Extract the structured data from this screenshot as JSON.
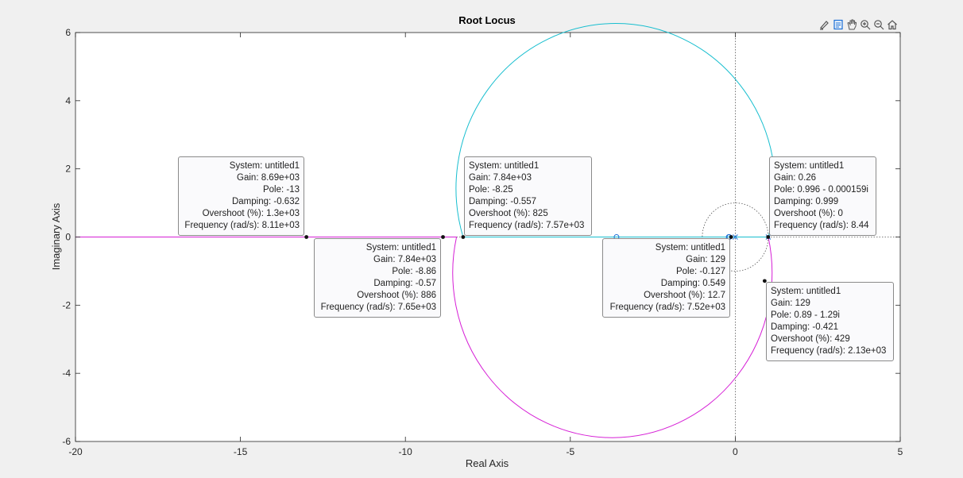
{
  "toolbar": {
    "icons": [
      "brush-icon",
      "datatip-icon",
      "pan-icon",
      "zoom-in-icon",
      "zoom-out-icon",
      "home-icon"
    ],
    "accent": "#1a6fd6"
  },
  "chart_data": {
    "type": "line",
    "title": "Root Locus",
    "xlabel": "Real Axis",
    "ylabel": "Imaginary Axis",
    "xlim": [
      -20,
      5
    ],
    "ylim": [
      -6,
      6
    ],
    "xticks": [
      -20,
      -15,
      -10,
      -5,
      0,
      5
    ],
    "yticks": [
      -6,
      -4,
      -2,
      0,
      2,
      4,
      6
    ],
    "grid": false,
    "colors": {
      "cyan_branch": "#17becf",
      "magenta_branch": "#d61fd6",
      "datatip_border": "#8a8a8a"
    },
    "circle_branch": {
      "center": [
        -3.6,
        0
      ],
      "radius": 4.84
    },
    "series": [
      {
        "color": "#17becf",
        "points": [
          [
            -8.25,
            0
          ],
          [
            1.0,
            0
          ]
        ],
        "upper_arc_from": [
          -8.25,
          0
        ],
        "upper_arc_to": [
          1.0,
          0
        ]
      },
      {
        "color": "#d61fd6",
        "points": [
          [
            -20,
            0
          ],
          [
            -8.45,
            0
          ]
        ],
        "lower_arc_from": [
          -8.45,
          0
        ],
        "lower_arc_to": [
          1.0,
          0
        ]
      }
    ],
    "poles": [
      [
        0,
        0
      ],
      [
        1.0,
        0
      ]
    ],
    "zeros": [
      [
        -3.6,
        0
      ],
      [
        -0.18,
        0
      ],
      [
        -0.2,
        0
      ]
    ],
    "reference_lines": {
      "vertical_x": 0,
      "horizontal_y": 0,
      "unit_circle_center": [
        0,
        0
      ],
      "unit_circle_radius": 1
    },
    "datatips": [
      {
        "point": [
          -13,
          0
        ],
        "align": "right",
        "lines": [
          "System: untitled1",
          "Gain: 8.69e+03",
          "Pole: -13",
          "Damping: -0.632",
          "Overshoot (%): 1.3e+03",
          "Frequency (rad/s): 8.11e+03"
        ]
      },
      {
        "point": [
          -8.86,
          0
        ],
        "align": "right",
        "lines": [
          "System: untitled1",
          "Gain: 7.84e+03",
          "Pole: -8.86",
          "Damping: -0.57",
          "Overshoot (%): 886",
          "Frequency (rad/s): 7.65e+03"
        ]
      },
      {
        "point": [
          -8.25,
          0
        ],
        "align": "left",
        "lines": [
          "System: untitled1",
          "Gain: 7.84e+03",
          "Pole: -8.25",
          "Damping: -0.557",
          "Overshoot (%): 825",
          "Frequency (rad/s): 7.57e+03"
        ]
      },
      {
        "point": [
          -0.127,
          0
        ],
        "align": "right",
        "lines": [
          "System: untitled1",
          "Gain: 129",
          "Pole: -0.127",
          "Damping: 0.549",
          "Overshoot (%): 12.7",
          "Frequency (rad/s): 7.52e+03"
        ]
      },
      {
        "point": [
          0.996,
          0
        ],
        "align": "left",
        "lines": [
          "System: untitled1",
          "Gain: 0.26",
          "Pole: 0.996 - 0.000159i",
          "Damping: 0.999",
          "Overshoot (%): 0",
          "Frequency (rad/s): 8.44"
        ]
      },
      {
        "point": [
          0.89,
          -1.29
        ],
        "align": "left",
        "lines": [
          "System: untitled1",
          "Gain: 129",
          "Pole: 0.89 - 1.29i",
          "Damping: -0.421",
          "Overshoot (%): 429",
          "Frequency (rad/s): 2.13e+03"
        ]
      }
    ]
  }
}
